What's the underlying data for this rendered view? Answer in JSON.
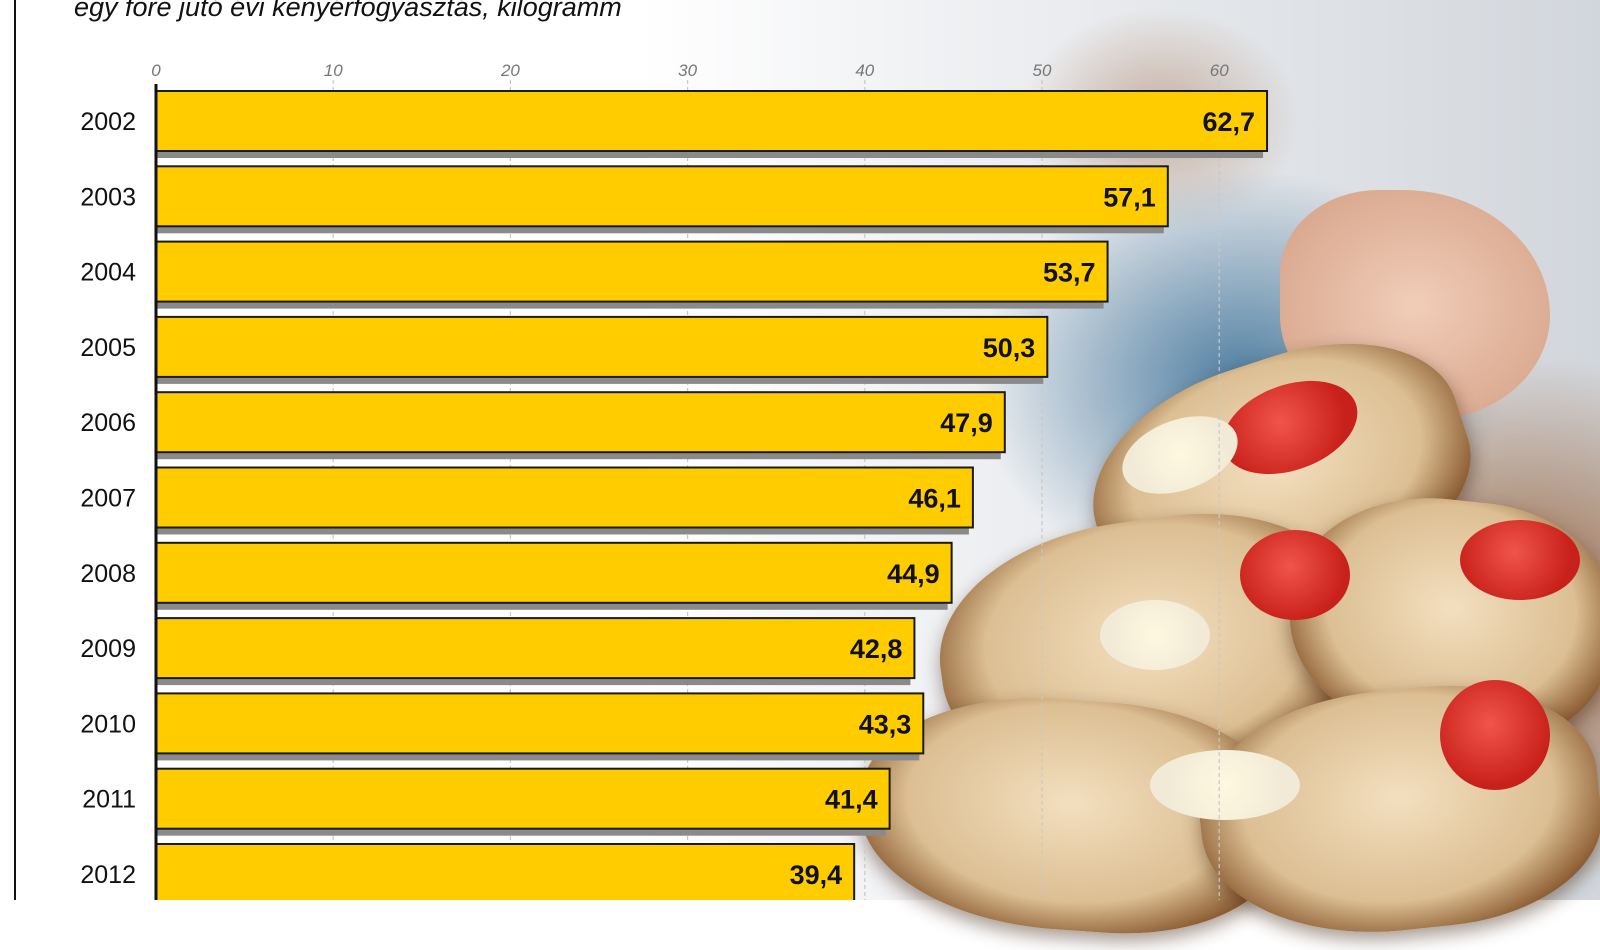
{
  "subtitle": "egy főre jutó évi kenyérfogyasztás, kilogramm",
  "colors": {
    "bar": "#ffcc00",
    "bar_stroke": "#1a1a1a",
    "shadow": "#8a8a8a",
    "grid": "#c8c8c8"
  },
  "chart_data": {
    "type": "bar",
    "orientation": "horizontal",
    "title": "",
    "subtitle": "egy főre jutó évi kenyérfogyasztás, kilogramm",
    "xlabel": "",
    "ylabel": "",
    "xlim": [
      0,
      60
    ],
    "xticks": [
      0,
      10,
      20,
      30,
      40,
      50,
      60
    ],
    "grid": true,
    "categories": [
      "2002",
      "2003",
      "2004",
      "2005",
      "2006",
      "2007",
      "2008",
      "2009",
      "2010",
      "2011",
      "2012"
    ],
    "values": [
      62.7,
      57.1,
      53.7,
      50.3,
      47.9,
      46.1,
      44.9,
      42.8,
      43.3,
      41.4,
      39.4
    ],
    "value_labels": [
      "62,7",
      "57,1",
      "53,7",
      "50,3",
      "47,9",
      "46,1",
      "44,9",
      "42,8",
      "43,3",
      "41,4",
      "39,4"
    ]
  }
}
